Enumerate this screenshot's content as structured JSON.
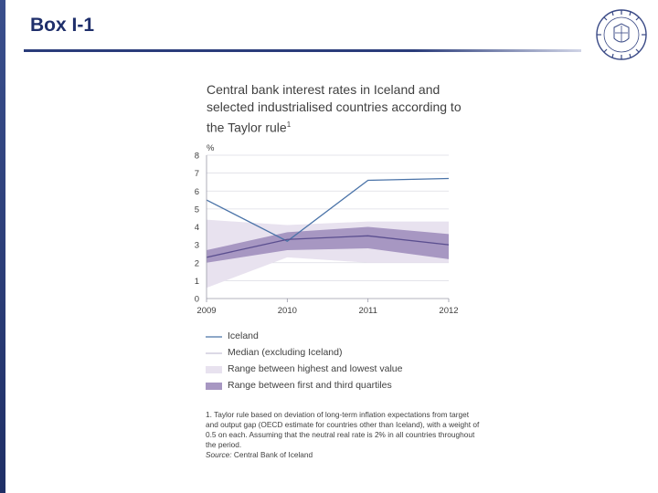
{
  "slide": {
    "title": "Box I-1"
  },
  "colors": {
    "accent": "#1f2f6b",
    "iceland_line": "#4a73a8",
    "median_line": "#5a4e8f",
    "range_outer": "#e8e2ef",
    "range_inner": "#a797c2"
  },
  "icons": {
    "seal": "university-seal-icon"
  },
  "chart": {
    "title_main": "Central bank interest rates in Iceland and selected industrialised countries according to the Taylor rule",
    "title_sup": "1",
    "unit": "%",
    "legend": {
      "iceland": "Iceland",
      "median": "Median (excluding Iceland)",
      "range_high_low": "Range between highest and lowest value",
      "range_quartiles": "Range between first and third quartiles"
    },
    "footnote": {
      "text": "1. Taylor rule based on deviation of long-term inflation expectations from target and output gap (OECD estimate for countries other than Iceland), with a weight of 0.5 on each. Assuming that the neutral real rate is 2% in all countries throughout the period.",
      "source_label": "Source:",
      "source_text": " Central Bank of Iceland"
    }
  },
  "chart_data": {
    "type": "line",
    "title": "Central bank interest rates in Iceland and selected industrialised countries according to the Taylor rule",
    "ylabel": "%",
    "xlabel": "",
    "x_ticks": [
      "2009",
      "2010",
      "2011",
      "2012"
    ],
    "y_ticks": [
      0,
      1,
      2,
      3,
      4,
      5,
      6,
      7,
      8
    ],
    "xlim": [
      2009,
      2012
    ],
    "ylim": [
      0,
      8
    ],
    "grid": "horizontal",
    "legend_position": "bottom",
    "series": [
      {
        "name": "Iceland",
        "x": [
          2009,
          2010,
          2011,
          2012
        ],
        "y": [
          5.5,
          3.2,
          6.6,
          6.7
        ]
      },
      {
        "name": "Median (excluding Iceland)",
        "x": [
          2009,
          2010,
          2011,
          2012
        ],
        "y": [
          2.3,
          3.3,
          3.5,
          3.0
        ]
      }
    ],
    "bands": [
      {
        "name": "Range between highest and lowest value",
        "x": [
          2009,
          2010,
          2011,
          2012
        ],
        "low": [
          0.6,
          2.3,
          2.0,
          2.0
        ],
        "high": [
          4.4,
          4.1,
          4.3,
          4.3
        ]
      },
      {
        "name": "Range between first and third quartiles",
        "x": [
          2009,
          2010,
          2011,
          2012
        ],
        "low": [
          2.0,
          2.7,
          2.8,
          2.2
        ],
        "high": [
          2.7,
          3.7,
          4.0,
          3.6
        ]
      }
    ]
  }
}
